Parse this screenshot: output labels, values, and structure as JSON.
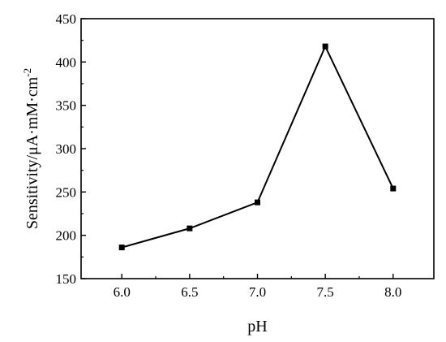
{
  "chart_data": {
    "type": "line",
    "title": "",
    "xlabel": "pH",
    "ylabel": {
      "main": "Sensitivity/μA·mM·cm",
      "superscript": "-2"
    },
    "x": [
      6.0,
      6.5,
      7.0,
      7.5,
      8.0
    ],
    "series": [
      {
        "values": [
          186,
          208,
          238,
          418,
          254
        ]
      }
    ],
    "xlim": [
      5.7,
      8.3
    ],
    "ylim": [
      150,
      450
    ],
    "xticks": [
      6.0,
      6.5,
      7.0,
      7.5,
      8.0
    ],
    "xtick_labels": [
      "6.0",
      "6.5",
      "7.0",
      "7.5",
      "8.0"
    ],
    "yticks": [
      150,
      200,
      250,
      300,
      350,
      400,
      450
    ],
    "ytick_labels": [
      "150",
      "200",
      "250",
      "300",
      "350",
      "400",
      "450"
    ],
    "grid": false,
    "legend": "none",
    "colors": {
      "line": "#000000",
      "marker": "#000000",
      "axis": "#000000"
    }
  }
}
